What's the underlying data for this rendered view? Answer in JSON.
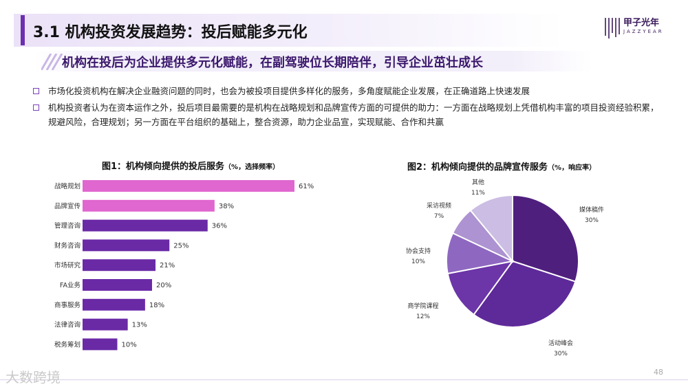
{
  "header": {
    "title": "3.1 机构投资发展趋势：投后赋能多元化",
    "logo_text": "甲子光年",
    "logo_sub": "JAZZYEAR"
  },
  "subtitle": "机构在投后为企业提供多元化赋能，在副驾驶位长期陪伴，引导企业茁壮成长",
  "bullets": [
    "市场化投资机构在解决企业融资问题的同时，也会为被投项目提供多样化的服务，多角度赋能企业发展，在正确道路上快速发展",
    "机构投资者认为在资本运作之外，投后项目最需要的是机构在战略规划和品牌宣传方面的可提供的助力：一方面在战略规划上凭借机构丰富的项目投资经验积累，规避风险，合理规划；另一方面在平台组织的基础上，整合资源，助力企业品宣，实现赋能、合作和共赢"
  ],
  "footer": {
    "logo": "大数跨境",
    "page": "48"
  },
  "colors": {
    "accent": "#6b2fb0",
    "pink": "#e05fc9",
    "deep": "#5b2296"
  },
  "chart_data": [
    {
      "type": "bar",
      "orientation": "horizontal",
      "title": "图1：机构倾向提供的投后服务",
      "title_note": "（%，选择频率）",
      "categories": [
        "战略规划",
        "品牌宣传",
        "管理咨询",
        "财务咨询",
        "市场研究",
        "FA业务",
        "商事服务",
        "法律咨询",
        "税务筹划"
      ],
      "values": [
        61,
        38,
        36,
        25,
        21,
        20,
        18,
        13,
        10
      ],
      "value_labels": [
        "61%",
        "38%",
        "36%",
        "25%",
        "21%",
        "20%",
        "18%",
        "13%",
        "10%"
      ],
      "colors": [
        "#e067cf",
        "#e067cf",
        "#6a2aa6",
        "#6a2aa6",
        "#6a2aa6",
        "#6a2aa6",
        "#6a2aa6",
        "#6a2aa6",
        "#6a2aa6"
      ],
      "xlim": [
        0,
        61
      ]
    },
    {
      "type": "pie",
      "title": "图2：机构倾向提供的品牌宣传服务",
      "title_note": "（%，响应率）",
      "labels": [
        "媒体稿件",
        "活动峰会",
        "商学院课程",
        "协会支持",
        "采访视频",
        "其他"
      ],
      "values": [
        30,
        30,
        12,
        10,
        7,
        11
      ],
      "value_labels": [
        "30%",
        "30%",
        "12%",
        "10%",
        "7%",
        "11%"
      ],
      "colors": [
        "#4f1f7e",
        "#5e2a99",
        "#6c35a8",
        "#8e68c0",
        "#ad93d1",
        "#cbbde3"
      ]
    }
  ]
}
